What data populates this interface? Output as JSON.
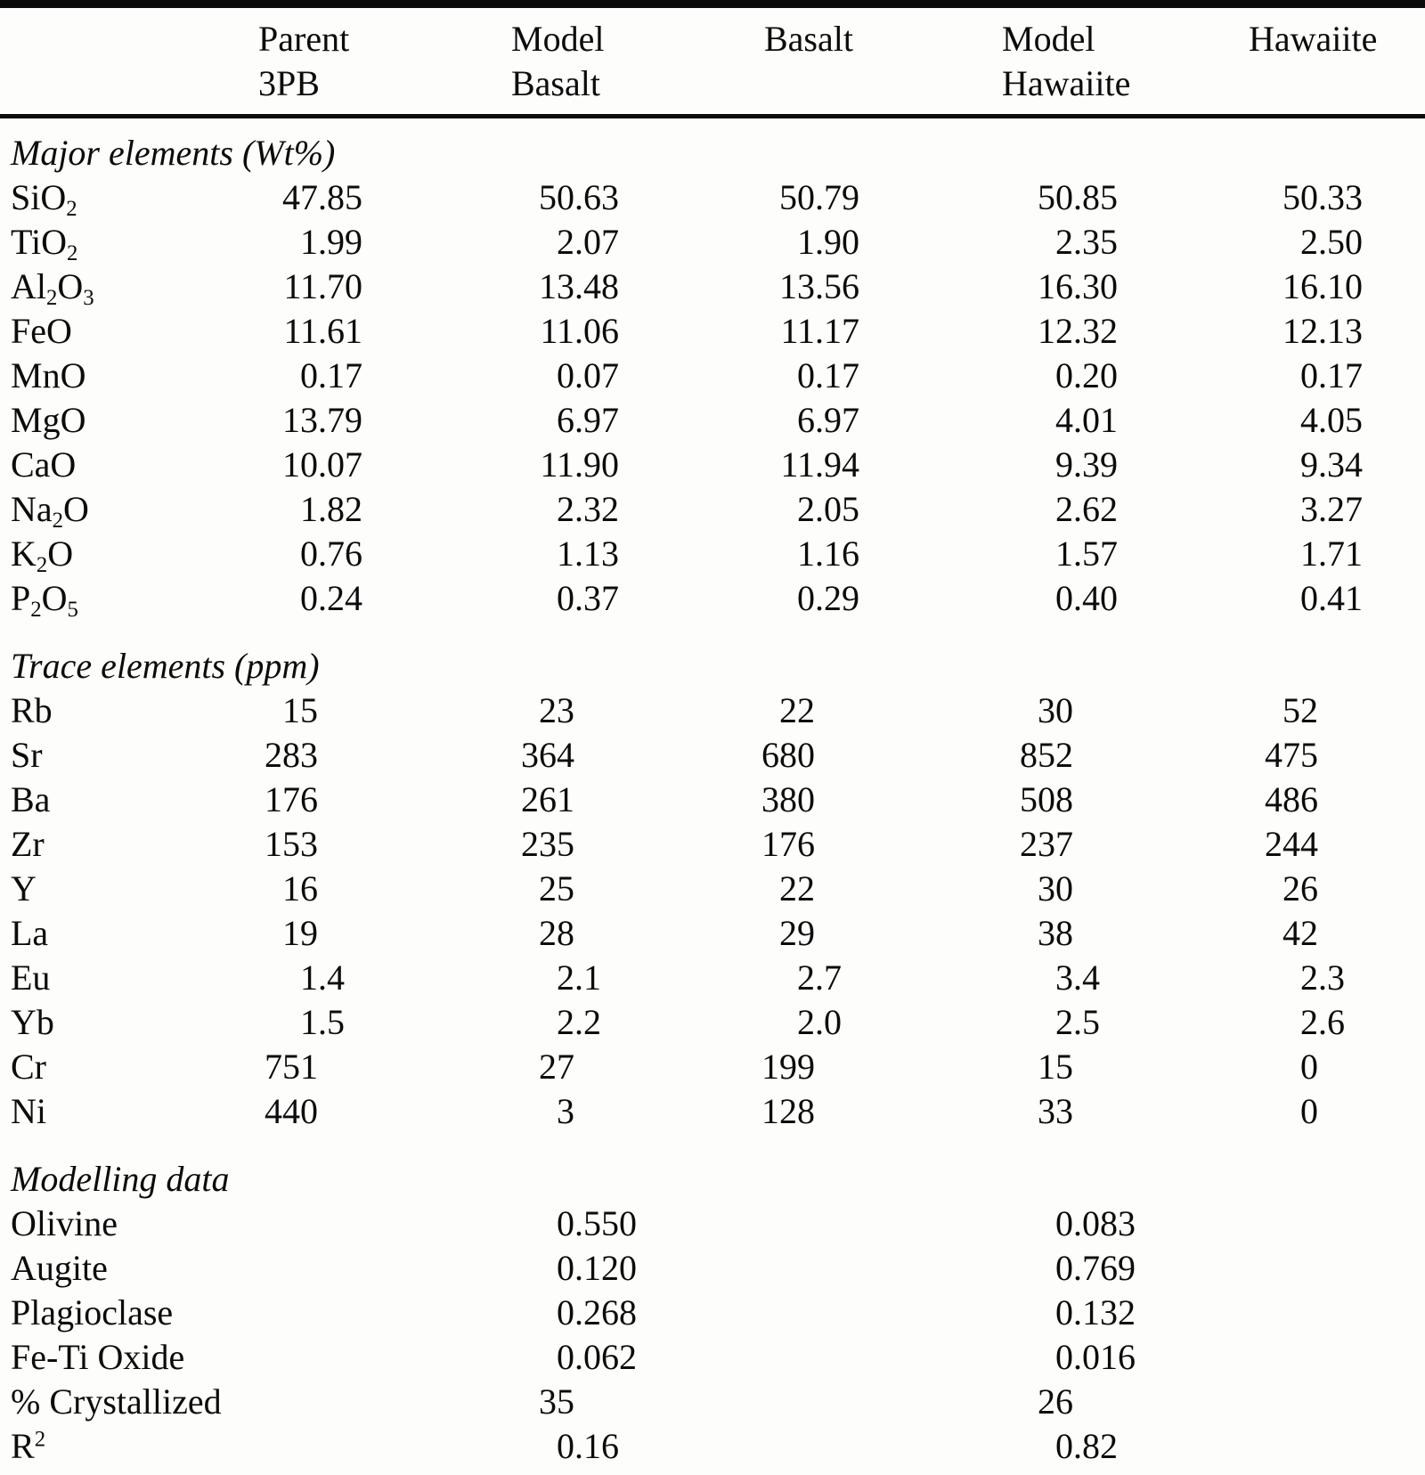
{
  "colors": {
    "ink": "#0c0c0c",
    "paper": "#fdfdfb"
  },
  "table": {
    "columns": [
      {
        "line1": "Parent",
        "line2": "3PB"
      },
      {
        "line1": "Model",
        "line2": "Basalt"
      },
      {
        "line1": "Basalt",
        "line2": ""
      },
      {
        "line1": "Model",
        "line2": "Hawaiite"
      },
      {
        "line1": "Hawaiite",
        "line2": ""
      }
    ],
    "sections": [
      {
        "title": "Major elements (Wt%)",
        "rows": [
          {
            "label": "SiO_2",
            "values": [
              "47.85",
              "50.63",
              "50.79",
              "50.85",
              "50.33"
            ]
          },
          {
            "label": "TiO_2",
            "values": [
              "1.99",
              "2.07",
              "1.90",
              "2.35",
              "2.50"
            ]
          },
          {
            "label": "Al_2O_3",
            "values": [
              "11.70",
              "13.48",
              "13.56",
              "16.30",
              "16.10"
            ]
          },
          {
            "label": "FeO",
            "values": [
              "11.61",
              "11.06",
              "11.17",
              "12.32",
              "12.13"
            ]
          },
          {
            "label": "MnO",
            "values": [
              "0.17",
              "0.07",
              "0.17",
              "0.20",
              "0.17"
            ]
          },
          {
            "label": "MgO",
            "values": [
              "13.79",
              "6.97",
              "6.97",
              "4.01",
              "4.05"
            ]
          },
          {
            "label": "CaO",
            "values": [
              "10.07",
              "11.90",
              "11.94",
              "9.39",
              "9.34"
            ]
          },
          {
            "label": "Na_2O",
            "values": [
              "1.82",
              "2.32",
              "2.05",
              "2.62",
              "3.27"
            ]
          },
          {
            "label": "K_2O",
            "values": [
              "0.76",
              "1.13",
              "1.16",
              "1.57",
              "1.71"
            ]
          },
          {
            "label": "P_2O_5",
            "values": [
              "0.24",
              "0.37",
              "0.29",
              "0.40",
              "0.41"
            ]
          }
        ]
      },
      {
        "title": "Trace elements (ppm)",
        "rows": [
          {
            "label": "Rb",
            "values": [
              "15",
              "23",
              "22",
              "30",
              "52"
            ]
          },
          {
            "label": "Sr",
            "values": [
              "283",
              "364",
              "680",
              "852",
              "475"
            ]
          },
          {
            "label": "Ba",
            "values": [
              "176",
              "261",
              "380",
              "508",
              "486"
            ]
          },
          {
            "label": "Zr",
            "values": [
              "153",
              "235",
              "176",
              "237",
              "244"
            ]
          },
          {
            "label": "Y",
            "values": [
              "16",
              "25",
              "22",
              "30",
              "26"
            ]
          },
          {
            "label": "La",
            "values": [
              "19",
              "28",
              "29",
              "38",
              "42"
            ]
          },
          {
            "label": "Eu",
            "values": [
              "1.4",
              "2.1",
              "2.7",
              "3.4",
              "2.3"
            ]
          },
          {
            "label": "Yb",
            "values": [
              "1.5",
              "2.2",
              "2.0",
              "2.5",
              "2.6"
            ]
          },
          {
            "label": "Cr",
            "values": [
              "751",
              "27",
              "199",
              "15",
              "0"
            ]
          },
          {
            "label": "Ni",
            "values": [
              "440",
              "3",
              "128",
              "33",
              "0"
            ]
          }
        ]
      },
      {
        "title": "Modelling data",
        "rows": [
          {
            "label": "Olivine",
            "values": [
              "",
              "0.550",
              "",
              "0.083",
              ""
            ]
          },
          {
            "label": "Augite",
            "values": [
              "",
              "0.120",
              "",
              "0.769",
              ""
            ]
          },
          {
            "label": "Plagioclase",
            "values": [
              "",
              "0.268",
              "",
              "0.132",
              ""
            ]
          },
          {
            "label": "Fe-Ti Oxide",
            "values": [
              "",
              "0.062",
              "",
              "0.016",
              ""
            ]
          },
          {
            "label": "% Crystallized",
            "values": [
              "",
              "35",
              "",
              "26",
              ""
            ]
          },
          {
            "label": "R^2",
            "values": [
              "",
              "0.16",
              "",
              "0.82",
              ""
            ]
          }
        ]
      }
    ]
  }
}
